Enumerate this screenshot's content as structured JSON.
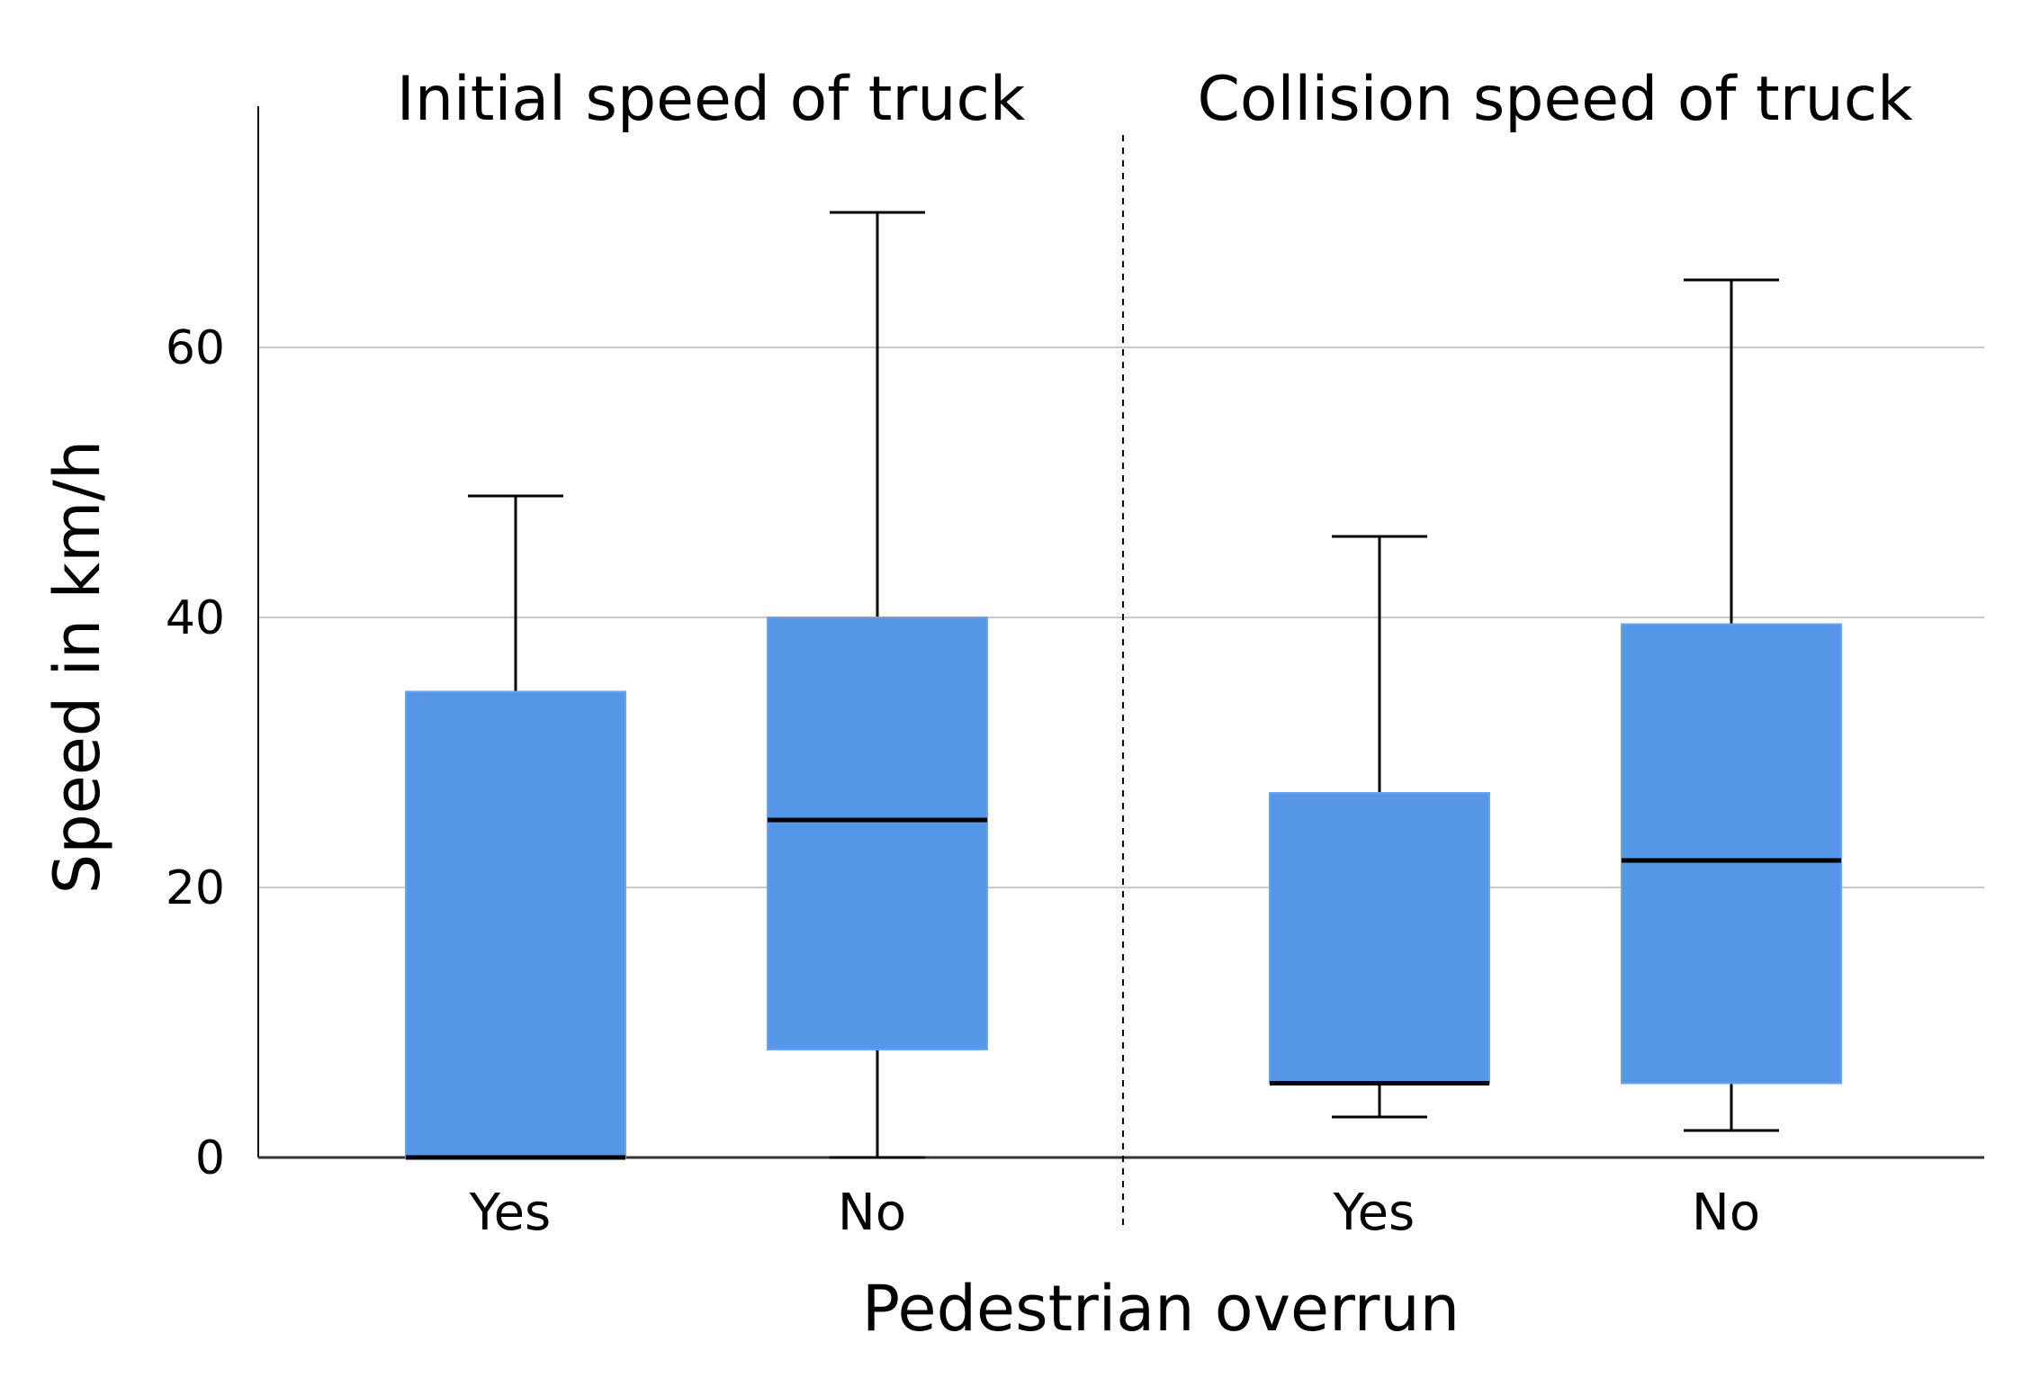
{
  "chart_data": {
    "type": "box",
    "xlabel": "Pedestrian overrun",
    "ylabel": "Speed in km/h",
    "ylim": [
      0,
      78
    ],
    "yticks": [
      0,
      20,
      40,
      60
    ],
    "grid": true,
    "box_color": "#5596E6",
    "panels": [
      {
        "title": "Initial speed of truck",
        "categories": [
          "Yes",
          "No"
        ],
        "boxes": [
          {
            "category": "Yes",
            "whisker_low": 0,
            "q1": 0,
            "median": 0,
            "q3": 34.5,
            "whisker_high": 49
          },
          {
            "category": "No",
            "whisker_low": 0,
            "q1": 8,
            "median": 25,
            "q3": 40,
            "whisker_high": 70
          }
        ]
      },
      {
        "title": "Collision speed of truck",
        "categories": [
          "Yes",
          "No"
        ],
        "boxes": [
          {
            "category": "Yes",
            "whisker_low": 3,
            "q1": 5.5,
            "median": 5.5,
            "q3": 27,
            "whisker_high": 46
          },
          {
            "category": "No",
            "whisker_low": 2,
            "q1": 5.5,
            "median": 22,
            "q3": 39.5,
            "whisker_high": 65
          }
        ]
      }
    ]
  }
}
